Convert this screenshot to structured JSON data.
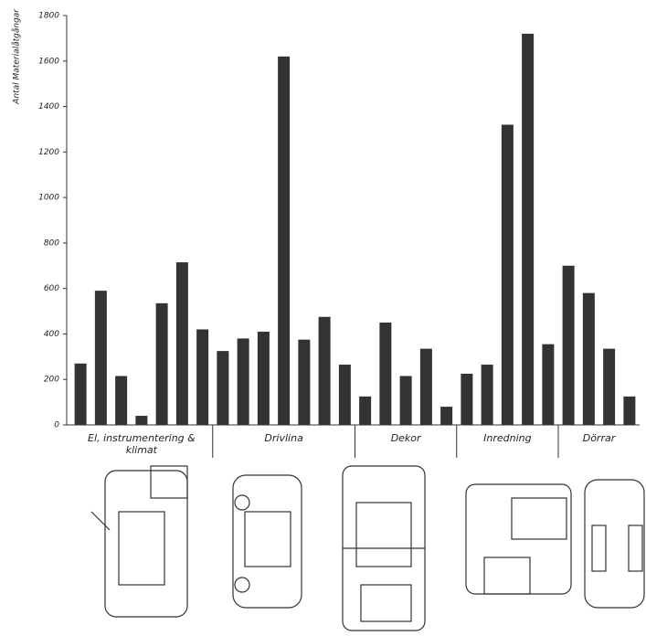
{
  "chart_data": {
    "type": "bar",
    "y_label": "Antal Materialåtgångar",
    "color": "#333333",
    "ylim": [
      0,
      1800
    ],
    "yticks": [
      0,
      200,
      400,
      600,
      800,
      1000,
      1200,
      1400,
      1600,
      1800
    ],
    "groups": [
      {
        "label": "El, instrumentering & klimat",
        "values": [
          270,
          590,
          215,
          40,
          535,
          715,
          420
        ]
      },
      {
        "label": "Drivlina",
        "values": [
          325,
          380,
          410,
          1620,
          375,
          475,
          265
        ]
      },
      {
        "label": "Dekor",
        "values": [
          125,
          450,
          215,
          335,
          80
        ]
      },
      {
        "label": "Inredning",
        "values": [
          225,
          265,
          1320,
          1720,
          355
        ]
      },
      {
        "label": "Dörrar",
        "values": [
          700,
          580,
          335,
          125
        ]
      }
    ]
  }
}
